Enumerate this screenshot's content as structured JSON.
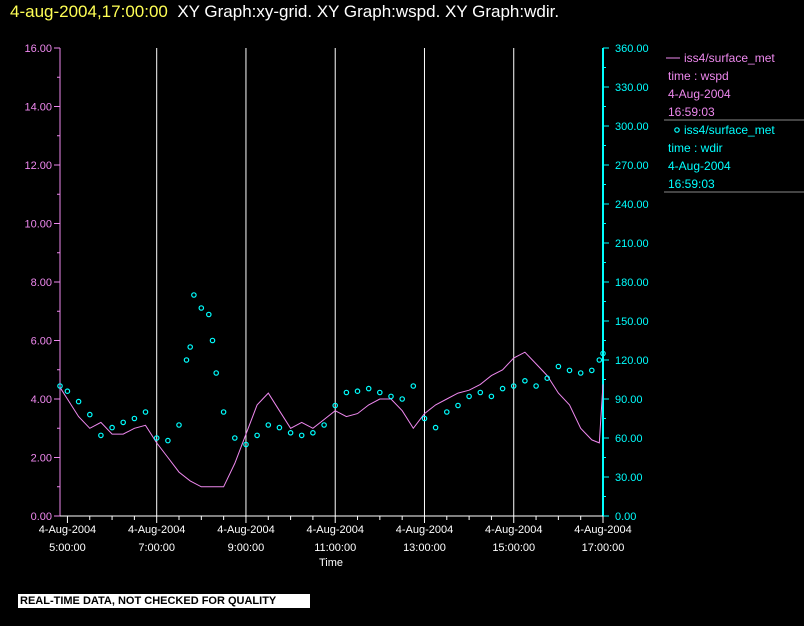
{
  "header": {
    "timestamp": "4-aug-2004,17:00:00",
    "titles": "XY Graph:xy-grid.  XY Graph:wspd.  XY Graph:wdir."
  },
  "footer": {
    "notice": "REAL-TIME DATA, NOT CHECKED FOR QUALITY"
  },
  "colors": {
    "wspd": "#ee88ee",
    "wdir": "#00ffff",
    "grid": "#ffffff",
    "background": "#000000"
  },
  "legend": [
    {
      "symbol": "line",
      "source": "iss4/surface_met",
      "vars": "time : wspd",
      "date": "4-Aug-2004",
      "time": "16:59:03"
    },
    {
      "symbol": "circle",
      "source": "iss4/surface_met",
      "vars": "time : wdir",
      "date": "4-Aug-2004",
      "time": "16:59:03"
    }
  ],
  "chart_data": {
    "type": "line",
    "xlabel": "Time",
    "grid": "vertical",
    "x_tick_labels": [
      {
        "date": "4-Aug-2004",
        "time": "5:00:00"
      },
      {
        "date": "4-Aug-2004",
        "time": "7:00:00"
      },
      {
        "date": "4-Aug-2004",
        "time": "9:00:00"
      },
      {
        "date": "4-Aug-2004",
        "time": "11:00:00"
      },
      {
        "date": "4-Aug-2004",
        "time": "13:00:00"
      },
      {
        "date": "4-Aug-2004",
        "time": "15:00:00"
      },
      {
        "date": "4-Aug-2004",
        "time": "17:00:00"
      }
    ],
    "xlim": [
      "04:50",
      "17:00"
    ],
    "y_left": {
      "series": "wspd",
      "ylim": [
        0,
        16
      ],
      "ticks": [
        "0.00",
        "2.00",
        "4.00",
        "6.00",
        "8.00",
        "10.00",
        "12.00",
        "14.00",
        "16.00"
      ]
    },
    "y_right": {
      "series": "wdir",
      "ylim": [
        0,
        360
      ],
      "ticks": [
        "0.00",
        "30.00",
        "60.00",
        "90.00",
        "120.00",
        "150.00",
        "180.00",
        "210.00",
        "240.00",
        "270.00",
        "300.00",
        "330.00",
        "360.00"
      ]
    },
    "series": [
      {
        "name": "iss4/surface_met time : wspd",
        "style": "line",
        "axis": "left",
        "x": [
          "04:50",
          "05:00",
          "05:15",
          "05:30",
          "05:45",
          "06:00",
          "06:15",
          "06:30",
          "06:45",
          "07:00",
          "07:15",
          "07:30",
          "07:45",
          "08:00",
          "08:15",
          "08:30",
          "08:45",
          "09:00",
          "09:15",
          "09:30",
          "09:45",
          "10:00",
          "10:15",
          "10:30",
          "10:45",
          "11:00",
          "11:15",
          "11:30",
          "11:45",
          "12:00",
          "12:15",
          "12:30",
          "12:45",
          "13:00",
          "13:15",
          "13:30",
          "13:45",
          "14:00",
          "14:15",
          "14:30",
          "14:45",
          "15:00",
          "15:15",
          "15:30",
          "15:45",
          "16:00",
          "16:15",
          "16:30",
          "16:45",
          "16:55",
          "17:00"
        ],
        "values": [
          4.4,
          4.0,
          3.4,
          3.0,
          3.2,
          2.8,
          2.8,
          3.0,
          3.1,
          2.5,
          2.0,
          1.5,
          1.2,
          1.0,
          1.0,
          1.0,
          1.8,
          2.8,
          3.8,
          4.2,
          3.6,
          3.0,
          3.2,
          3.0,
          3.3,
          3.6,
          3.4,
          3.5,
          3.8,
          4.0,
          4.0,
          3.6,
          3.0,
          3.5,
          3.8,
          4.0,
          4.2,
          4.3,
          4.5,
          4.8,
          5.0,
          5.4,
          5.6,
          5.2,
          4.8,
          4.2,
          3.8,
          3.0,
          2.6,
          2.5,
          4.5
        ]
      },
      {
        "name": "iss4/surface_met time : wdir",
        "style": "circle",
        "axis": "right",
        "x": [
          "04:50",
          "05:00",
          "05:15",
          "05:30",
          "05:45",
          "06:00",
          "06:15",
          "06:30",
          "06:45",
          "07:00",
          "07:15",
          "07:30",
          "07:40",
          "07:45",
          "07:50",
          "08:00",
          "08:10",
          "08:15",
          "08:20",
          "08:30",
          "08:45",
          "09:00",
          "09:15",
          "09:30",
          "09:45",
          "10:00",
          "10:15",
          "10:30",
          "10:45",
          "11:00",
          "11:15",
          "11:30",
          "11:45",
          "12:00",
          "12:15",
          "12:30",
          "12:45",
          "13:00",
          "13:15",
          "13:30",
          "13:45",
          "14:00",
          "14:15",
          "14:30",
          "14:45",
          "15:00",
          "15:15",
          "15:30",
          "15:45",
          "16:00",
          "16:15",
          "16:30",
          "16:45",
          "16:55",
          "17:00"
        ],
        "values": [
          100,
          96,
          88,
          78,
          62,
          68,
          72,
          75,
          80,
          60,
          58,
          70,
          120,
          130,
          170,
          160,
          155,
          135,
          110,
          80,
          60,
          55,
          62,
          70,
          68,
          64,
          62,
          64,
          70,
          85,
          95,
          96,
          98,
          95,
          92,
          90,
          100,
          75,
          68,
          80,
          85,
          92,
          95,
          92,
          98,
          100,
          104,
          100,
          106,
          115,
          112,
          110,
          112,
          120,
          125
        ]
      }
    ]
  }
}
